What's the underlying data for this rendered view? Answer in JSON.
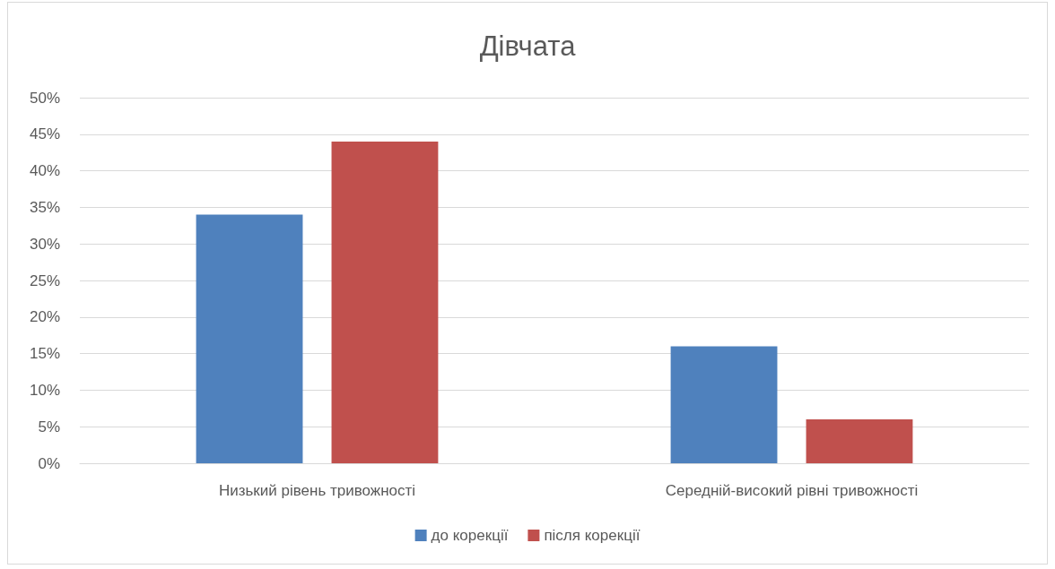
{
  "chart_data": {
    "type": "bar",
    "title": "Дівчата",
    "categories": [
      "Низький рівень тривожності",
      "Середній-високий рівні тривожності"
    ],
    "series": [
      {
        "name": "до корекції",
        "color": "#4f81bd",
        "values": [
          34,
          16
        ]
      },
      {
        "name": "після корекції",
        "color": "#c0504d",
        "values": [
          44,
          6
        ]
      }
    ],
    "ylim": [
      0,
      50
    ],
    "yticks": [
      {
        "value": 0,
        "label": "0%"
      },
      {
        "value": 5,
        "label": "5%"
      },
      {
        "value": 10,
        "label": "10%"
      },
      {
        "value": 15,
        "label": "15%"
      },
      {
        "value": 20,
        "label": "20%"
      },
      {
        "value": 25,
        "label": "25%"
      },
      {
        "value": 30,
        "label": "30%"
      },
      {
        "value": 35,
        "label": "35%"
      },
      {
        "value": 40,
        "label": "40%"
      },
      {
        "value": 45,
        "label": "45%"
      },
      {
        "value": 50,
        "label": "50%"
      }
    ],
    "grid": true,
    "legend": "bottom"
  }
}
